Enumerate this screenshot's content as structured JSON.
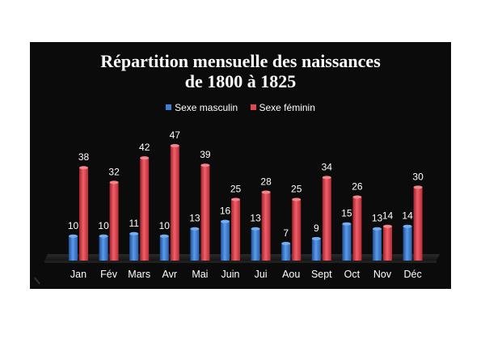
{
  "colors": {
    "panel_background": "#0b0b0b",
    "male": "#3f7fd6",
    "female": "#e0474f",
    "text": "#ffffff"
  },
  "chart_data": {
    "type": "bar",
    "title": "Répartition mensuelle des naissances de 1800 à 1825",
    "title_lines": [
      "Répartition mensuelle des naissances",
      "de 1800 à 1825"
    ],
    "categories": [
      "Jan",
      "Fév",
      "Mars",
      "Avr",
      "Mai",
      "Juin",
      "Jui",
      "Aou",
      "Sept",
      "Oct",
      "Nov",
      "Déc"
    ],
    "series": [
      {
        "name": "Sexe masculin",
        "color": "#3f7fd6",
        "values": [
          10,
          10,
          11,
          10,
          13,
          16,
          13,
          7,
          9,
          15,
          13,
          14
        ]
      },
      {
        "name": "Sexe féminin",
        "color": "#e0474f",
        "values": [
          38,
          32,
          42,
          47,
          39,
          25,
          28,
          25,
          34,
          26,
          14,
          30
        ]
      }
    ],
    "data_labels": true,
    "ylim": [
      0,
      50
    ],
    "legend_position": "top",
    "grid": false,
    "xlabel": "",
    "ylabel": ""
  }
}
